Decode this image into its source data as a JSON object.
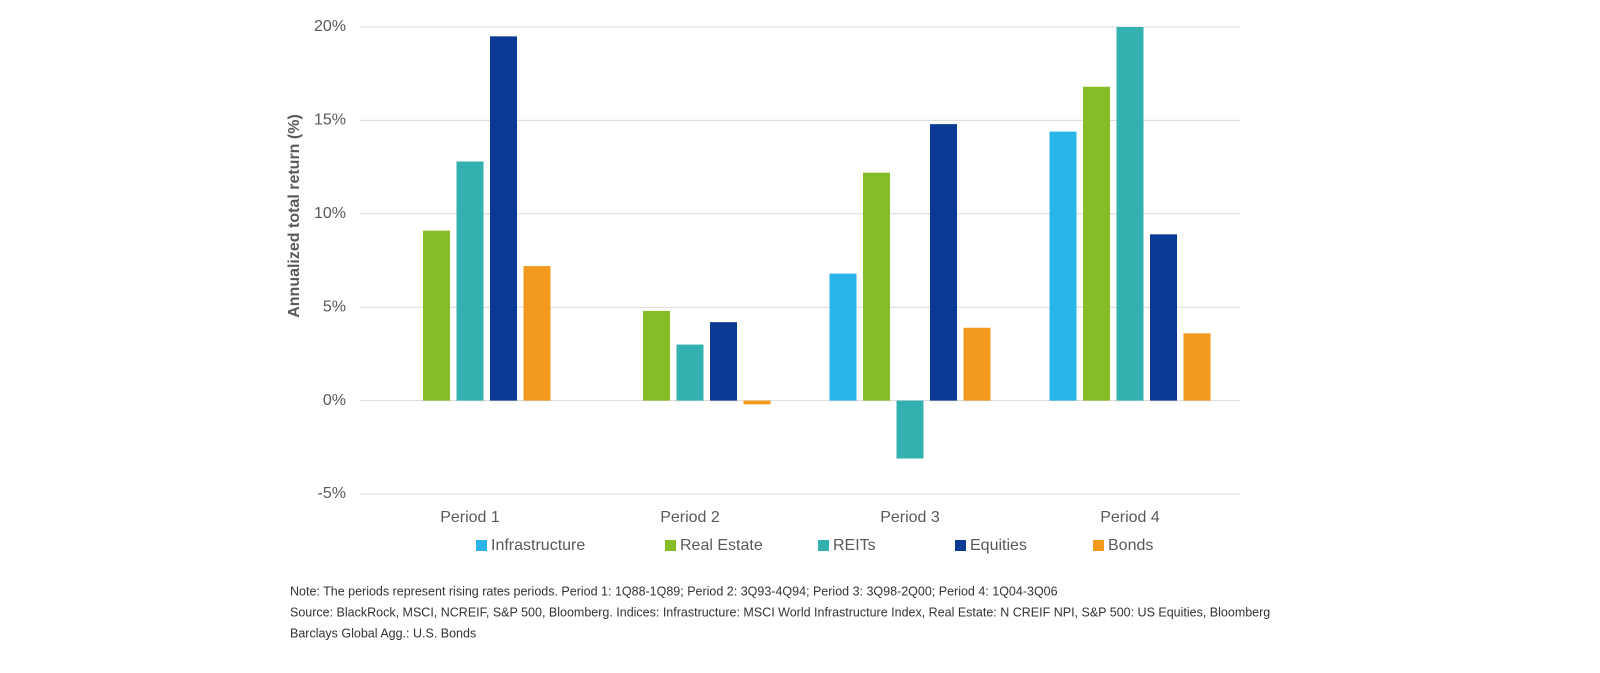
{
  "chart_data": {
    "type": "bar",
    "y_label": "Annualized total return (%)",
    "categories": [
      "Period 1",
      "Period 2",
      "Period 3",
      "Period 4"
    ],
    "series": [
      {
        "name": "Infrastructure",
        "color": "#29b5e8",
        "values": [
          null,
          null,
          6.8,
          14.4
        ]
      },
      {
        "name": "Real Estate",
        "color": "#86bc25",
        "values": [
          9.1,
          4.8,
          12.2,
          16.8
        ]
      },
      {
        "name": "REITs",
        "color": "#33b0b0",
        "values": [
          12.8,
          3.0,
          -3.1,
          20.0
        ]
      },
      {
        "name": "Equities",
        "color": "#0a3a94",
        "values": [
          19.5,
          4.2,
          14.8,
          8.9
        ]
      },
      {
        "name": "Bonds",
        "color": "#f39a1e",
        "values": [
          7.2,
          -0.2,
          3.9,
          3.6
        ]
      }
    ],
    "ylim": [
      -5,
      20
    ],
    "yticks": [
      {
        "value": -5,
        "label": "-5%"
      },
      {
        "value": 0,
        "label": "0%"
      },
      {
        "value": 5,
        "label": "5%"
      },
      {
        "value": 10,
        "label": "10%"
      },
      {
        "value": 15,
        "label": "15%"
      },
      {
        "value": 20,
        "label": "20%"
      }
    ],
    "grid": true,
    "notes": [
      "Note: The periods represent rising rates periods. Period 1: 1Q88-1Q89; Period 2: 3Q93-4Q94; Period 3: 3Q98-2Q00; Period 4: 1Q04-3Q06",
      "Source: BlackRock,  MSCI, NCREIF, S&P 500, Bloomberg.  Indices: Infrastructure:  MSCI World Infrastructure  Index, Real Estate:  N CREIF NPI, S&P 500: US Equities,  Bloomberg",
      "Barclays Global Agg.: U.S. Bonds"
    ]
  }
}
